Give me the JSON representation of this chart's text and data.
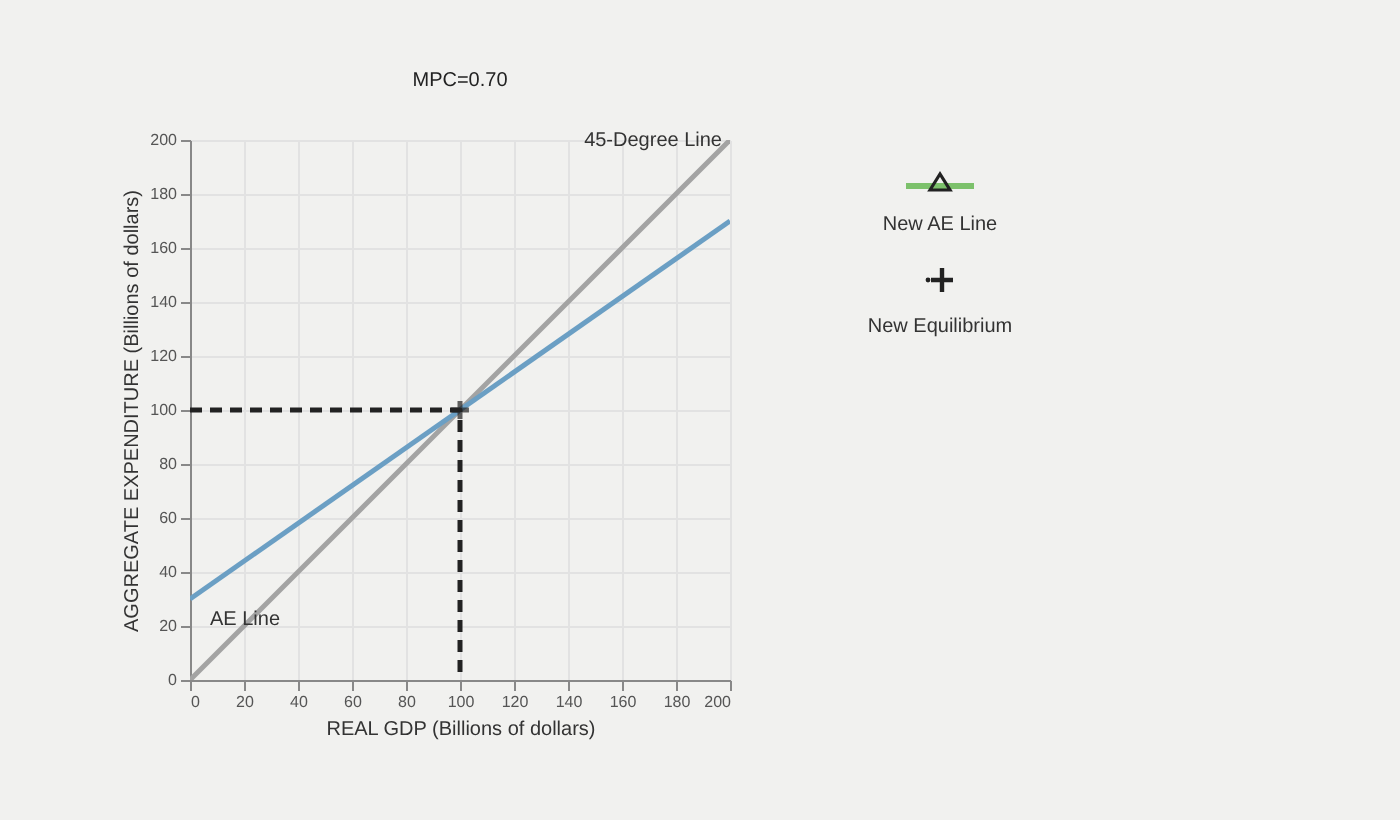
{
  "chart_data": {
    "type": "line",
    "title": "MPC=0.70",
    "xlabel": "REAL GDP (Billions of dollars)",
    "ylabel": "AGGREGATE EXPENDITURE (Billions of dollars)",
    "xlim": [
      0,
      200
    ],
    "ylim": [
      0,
      200
    ],
    "xticks": [
      0,
      20,
      40,
      60,
      80,
      100,
      120,
      140,
      160,
      180,
      200
    ],
    "yticks": [
      0,
      20,
      40,
      60,
      80,
      100,
      120,
      140,
      160,
      180,
      200
    ],
    "grid": true,
    "line_style": "solid",
    "series": [
      {
        "name": "45-Degree Line",
        "color": "#a3a3a3",
        "x": [
          0,
          200
        ],
        "values": [
          0,
          200
        ]
      },
      {
        "name": "AE Line",
        "color": "#6b9fc4",
        "x": [
          0,
          200
        ],
        "values": [
          30,
          170
        ]
      },
      {
        "type": "line",
        "line_style": "dashed",
        "color": "#222222",
        "x": [
          0,
          100,
          100
        ],
        "values": [
          100,
          100,
          0
        ]
      },
      {
        "type": "scatter",
        "marker": "cross",
        "color": "#222222",
        "x": [
          100
        ],
        "values": [
          100
        ]
      }
    ],
    "annotations": [
      "New AE Line",
      "New Equilibrium"
    ]
  }
}
